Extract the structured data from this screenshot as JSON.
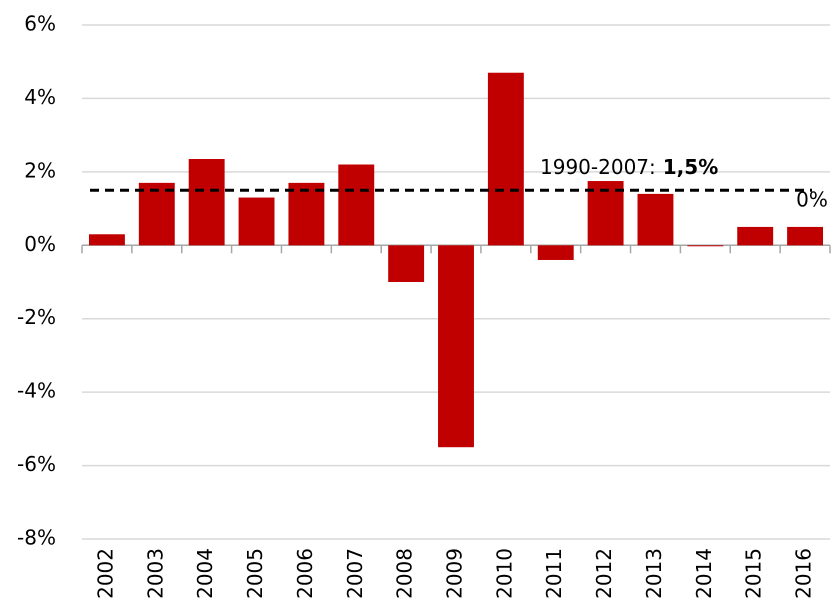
{
  "chart_data": {
    "type": "bar",
    "categories": [
      "2002",
      "2003",
      "2004",
      "2005",
      "2006",
      "2007",
      "2008",
      "2009",
      "2010",
      "2011",
      "2012",
      "2013",
      "2014",
      "2015",
      "2016"
    ],
    "values": [
      0.3,
      1.7,
      2.35,
      1.3,
      1.7,
      2.2,
      -1.0,
      -5.5,
      4.7,
      -0.4,
      1.75,
      1.4,
      0,
      0.5,
      0.5
    ],
    "color": "#c00000",
    "ylim": [
      -8,
      6
    ],
    "yticks": [
      {
        "value": -8,
        "label": "-8%"
      },
      {
        "value": -6,
        "label": "-6%"
      },
      {
        "value": -4,
        "label": "-4%"
      },
      {
        "value": -2,
        "label": "-2%"
      },
      {
        "value": 0,
        "label": "0%"
      },
      {
        "value": 2,
        "label": "2%"
      },
      {
        "value": 4,
        "label": "4%"
      },
      {
        "value": 6,
        "label": "6%"
      }
    ],
    "grid": true,
    "reference_line": {
      "value": 1.5,
      "label": "1990-2007:",
      "value_label": "1,5%"
    },
    "annotations": [
      "0%"
    ]
  }
}
